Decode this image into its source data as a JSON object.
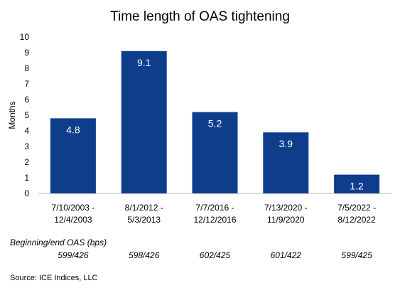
{
  "chart_data": {
    "type": "bar",
    "title": "Time length of OAS tightening",
    "ylabel": "Months",
    "xlabel": "",
    "ylim": [
      0,
      10
    ],
    "yticks": [
      0,
      1,
      2,
      3,
      4,
      5,
      6,
      7,
      8,
      9,
      10
    ],
    "grid": false,
    "bar_color": "#0e3d8c",
    "categories": [
      [
        "7/10/2003 -",
        "12/4/2003"
      ],
      [
        "8/1/2012 -",
        "5/3/2013"
      ],
      [
        "7/7/2016 -",
        "12/12/2016"
      ],
      [
        "7/13/2020 -",
        "11/9/2020"
      ],
      [
        "7/5/2022 -",
        "8/12/2022"
      ]
    ],
    "values": [
      4.8,
      9.1,
      5.2,
      3.9,
      1.2
    ],
    "data_labels": [
      "4.8",
      "9.1",
      "5.2",
      "3.9",
      "1.2"
    ]
  },
  "oas_table": {
    "header": "Beginning/end OAS (bps)",
    "values": [
      "599/426",
      "598/426",
      "602/425",
      "601/422",
      "599/425"
    ]
  },
  "source": "Source: ICE Indices, LLC"
}
